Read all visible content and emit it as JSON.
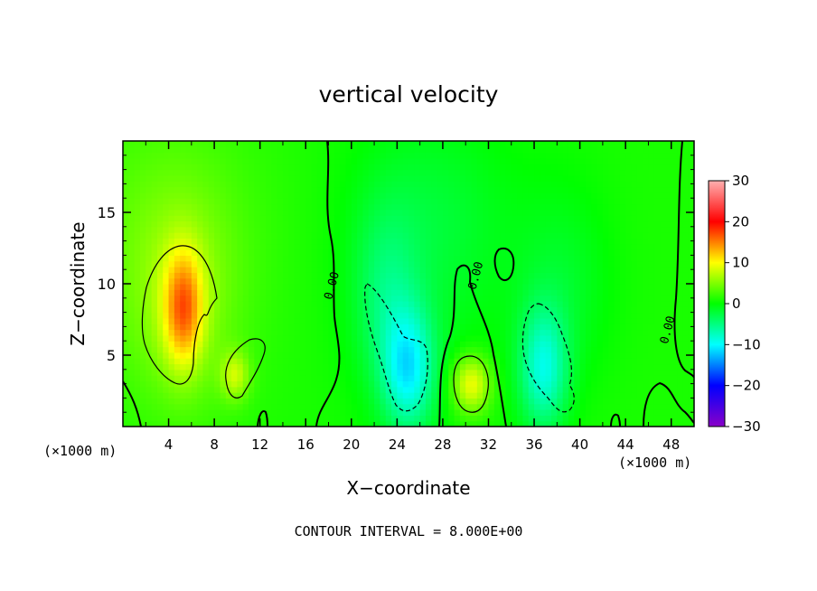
{
  "chart_data": {
    "type": "heatmap",
    "title": "vertical velocity",
    "xlabel": "X−coordinate",
    "ylabel": "Z−coordinate",
    "x_unit_left": "(×1000 m)",
    "x_unit_right": "(×1000 m)",
    "footer": "CONTOUR INTERVAL = 8.000E+00",
    "xlim": [
      0,
      50
    ],
    "ylim": [
      0,
      20
    ],
    "x_ticks": [
      4,
      8,
      12,
      16,
      20,
      24,
      28,
      32,
      36,
      40,
      44,
      48
    ],
    "x_tick_labels": [
      "4",
      "8",
      "12",
      "16",
      "20",
      "24",
      "28",
      "32",
      "36",
      "40",
      "44",
      "48"
    ],
    "y_ticks": [
      5,
      10,
      15
    ],
    "y_tick_labels": [
      "5",
      "10",
      "15"
    ],
    "colorbar": {
      "range": [
        -30,
        30
      ],
      "ticks": [
        30,
        20,
        10,
        0,
        -10,
        -20,
        -30
      ],
      "tick_labels": [
        "30",
        "20",
        "10",
        "0",
        "−10",
        "−20",
        "−30"
      ],
      "colors": [
        "#8a00c8",
        "#0000ff",
        "#00ffff",
        "#00ff00",
        "#ffff00",
        "#ff0000",
        "#ffb0b0"
      ]
    },
    "contour_labels": [
      {
        "text": "0.00",
        "x": 18.6,
        "y": 9.8
      },
      {
        "text": "0.00",
        "x": 31.2,
        "y": 10.5
      },
      {
        "text": "0.00",
        "x": 48.0,
        "y": 6.7
      }
    ],
    "features": [
      {
        "cx": 5.3,
        "cy": 8.3,
        "sx": 1.2,
        "sy": 2.8,
        "w": 11
      },
      {
        "cx": 5.0,
        "cy": 9.0,
        "sx": 3.4,
        "sy": 5.5,
        "w": 4
      },
      {
        "cx": 9.8,
        "cy": 3.6,
        "sx": 0.9,
        "sy": 1.2,
        "w": 6
      },
      {
        "cx": 30.5,
        "cy": 3.0,
        "sx": 1.2,
        "sy": 1.4,
        "w": 9
      },
      {
        "cx": 3.0,
        "cy": 14.0,
        "sx": 7.0,
        "sy": 7.0,
        "w": 2
      },
      {
        "cx": 25.0,
        "cy": 4.0,
        "sx": 1.6,
        "sy": 3.0,
        "w": -10
      },
      {
        "cx": 23.0,
        "cy": 9.0,
        "sx": 2.0,
        "sy": 4.5,
        "w": -4
      },
      {
        "cx": 36.8,
        "cy": 4.0,
        "sx": 1.5,
        "sy": 3.0,
        "w": -9
      },
      {
        "cx": 38.5,
        "cy": 10.0,
        "sx": 3.0,
        "sy": 5.0,
        "w": -2.5
      },
      {
        "cx": 27.5,
        "cy": 15.0,
        "sx": 5.0,
        "sy": 5.0,
        "w": -2
      },
      {
        "cx": 26.0,
        "cy": 10.0,
        "sx": 5.0,
        "sy": 8.0,
        "w": -1.5
      }
    ]
  }
}
